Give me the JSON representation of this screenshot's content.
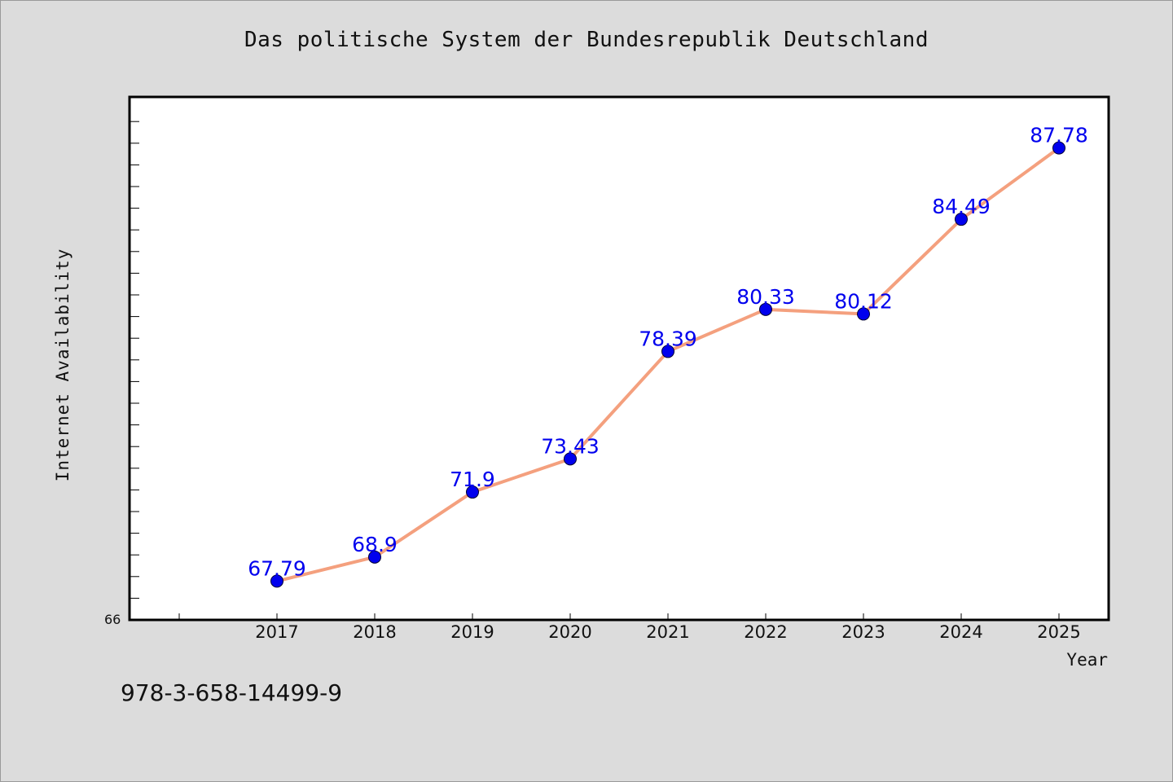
{
  "title": "Das politische System der Bundesrepublik Deutschland",
  "footnote": "978-3-658-14499-9",
  "colors": {
    "background": "#dcdcdc",
    "plot_background": "#ffffff",
    "line": "#f4a07e",
    "marker": "#0000ee",
    "label": "#0000ee"
  },
  "chart_data": {
    "type": "line",
    "x": [
      "2017",
      "2018",
      "2019",
      "2020",
      "2021",
      "2022",
      "2023",
      "2024",
      "2025"
    ],
    "values": [
      67.79,
      68.9,
      71.9,
      73.43,
      78.39,
      80.33,
      80.12,
      84.49,
      87.78
    ],
    "data_labels": [
      "67.79",
      "68.9",
      "71.9",
      "73.43",
      "78.39",
      "80.33",
      "80.12",
      "84.49",
      "87.78"
    ],
    "xlabel": "Year",
    "ylabel": "Internet Availability",
    "ylim": [
      66,
      90
    ],
    "ymin_label": "66",
    "grid": false,
    "legend": "none"
  }
}
